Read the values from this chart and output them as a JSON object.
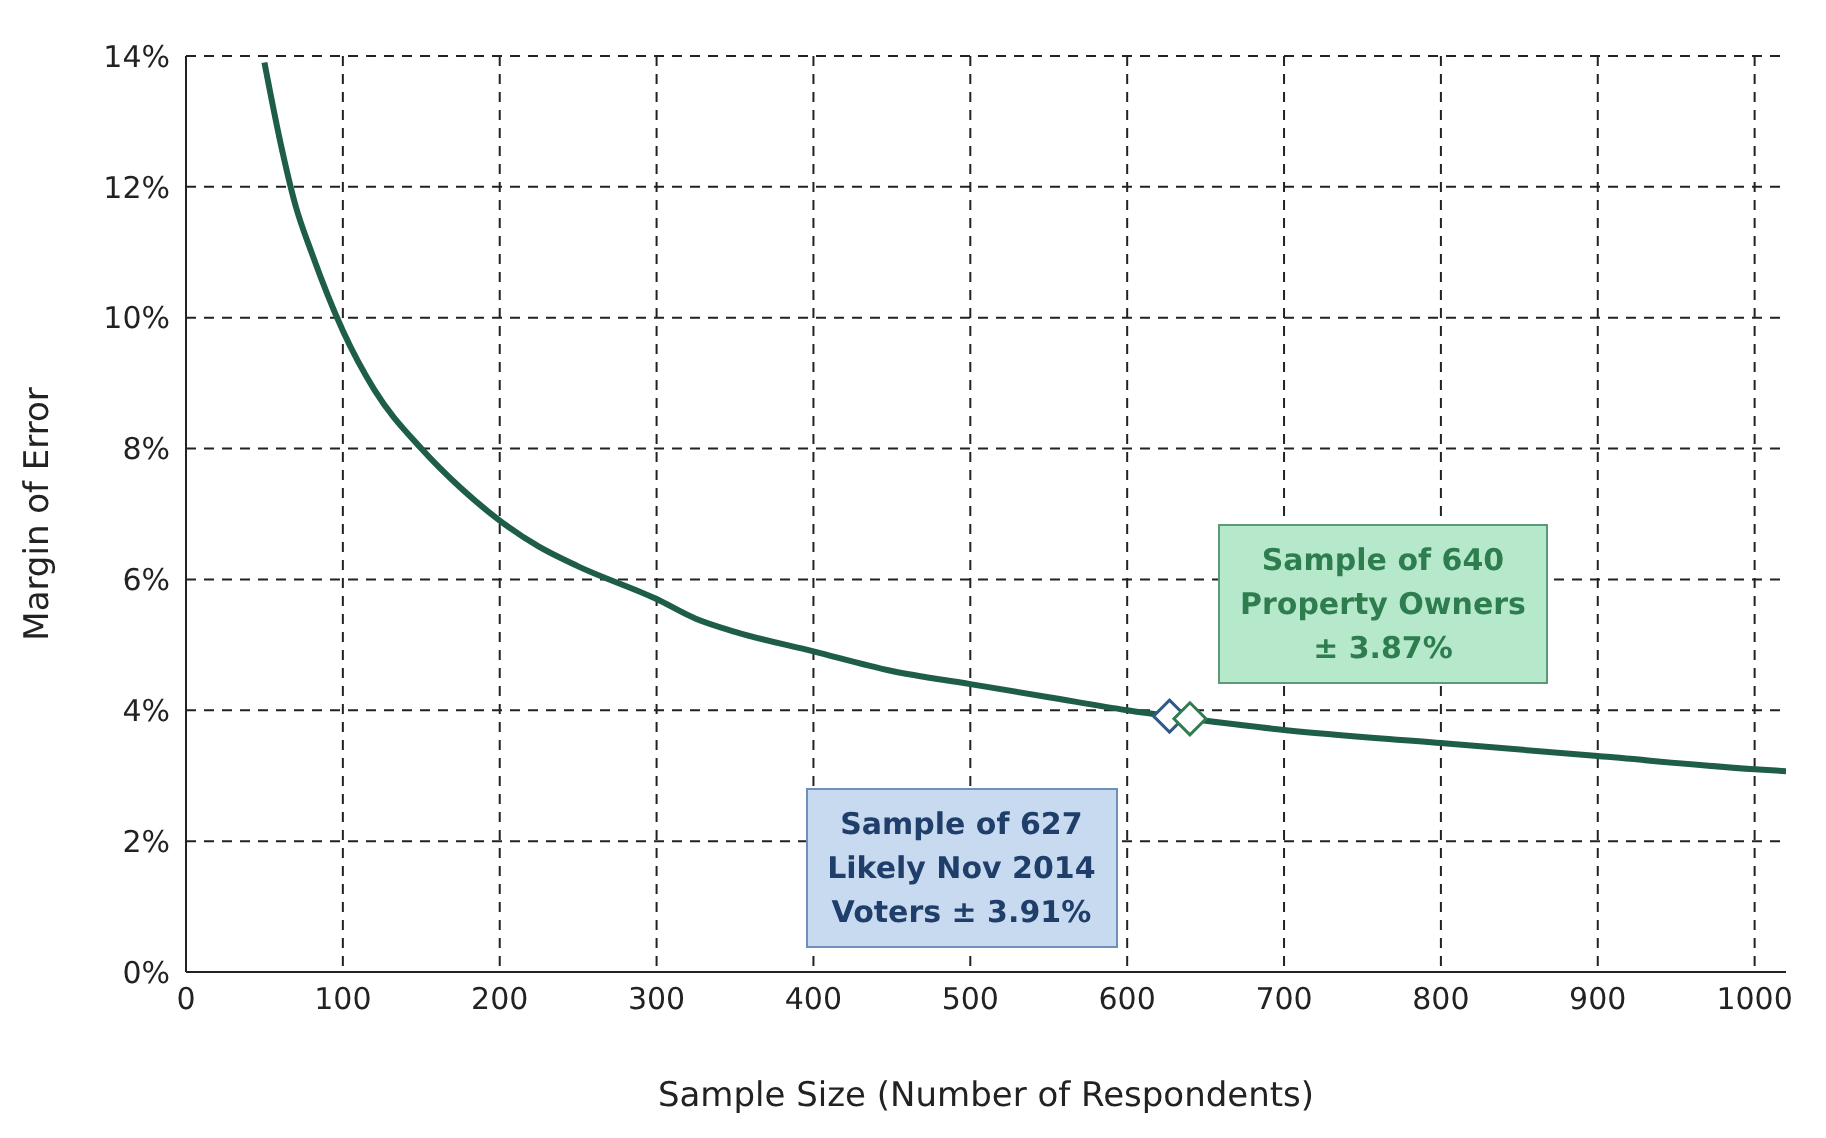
{
  "chart_data": {
    "type": "line",
    "xlabel": "Sample Size (Number of Respondents)",
    "ylabel": "Margin of Error",
    "xlim": [
      0,
      1020
    ],
    "xticks": [
      0,
      100,
      200,
      300,
      400,
      500,
      600,
      700,
      800,
      900,
      1000
    ],
    "ylim": [
      0,
      14
    ],
    "yticks": [
      {
        "value": 0,
        "label": "0%"
      },
      {
        "value": 2,
        "label": "2%"
      },
      {
        "value": 4,
        "label": "4%"
      },
      {
        "value": 6,
        "label": "6%"
      },
      {
        "value": 8,
        "label": "8%"
      },
      {
        "value": 10,
        "label": "10%"
      },
      {
        "value": 12,
        "label": "12%"
      },
      {
        "value": 14,
        "label": "14%"
      }
    ],
    "grid": true,
    "series": [
      {
        "color": "#1e5e46",
        "marker": "none",
        "x": [
          50,
          60,
          70,
          80,
          100,
          120,
          150,
          175,
          200,
          225,
          250,
          300,
          325,
          350,
          400,
          450,
          500,
          550,
          600,
          627,
          640,
          700,
          800,
          900,
          1000,
          1020
        ],
        "values": [
          13.9,
          12.7,
          11.7,
          11.0,
          9.8,
          8.9,
          8.0,
          7.4,
          6.9,
          6.5,
          6.2,
          5.7,
          5.4,
          5.2,
          4.9,
          4.6,
          4.4,
          4.2,
          4.0,
          3.91,
          3.87,
          3.7,
          3.5,
          3.3,
          3.1,
          3.07
        ]
      },
      {
        "type": "scatter",
        "color": "#2e5a87",
        "marker": "diamond",
        "x": [
          627
        ],
        "values": [
          3.91
        ]
      },
      {
        "type": "scatter",
        "color": "#2e7d4f",
        "marker": "diamond",
        "x": [
          640
        ],
        "values": [
          3.87
        ]
      }
    ],
    "annotations": [
      "Sample of 640\nProperty Owners\n± 3.87%",
      "Sample of 627\nLikely Nov 2014\nVoters ± 3.91%"
    ]
  }
}
